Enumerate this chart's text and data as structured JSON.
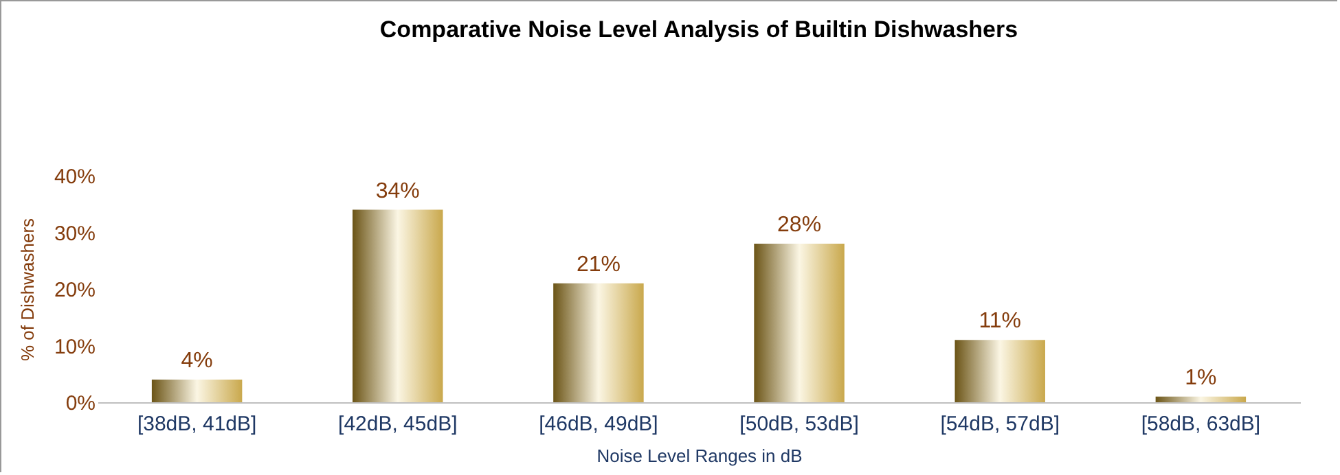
{
  "chart_data": {
    "type": "bar",
    "title": "Comparative  Noise Level Analysis of Builtin Dishwashers",
    "xlabel": "Noise Level Ranges in dB",
    "ylabel": "% of Dishwashers",
    "categories": [
      "[38dB, 41dB]",
      "[42dB, 45dB]",
      "[46dB, 49dB]",
      "[50dB, 53dB]",
      "[54dB, 57dB]",
      "[58dB, 63dB]"
    ],
    "values": [
      4,
      34,
      21,
      28,
      11,
      1
    ],
    "value_labels": [
      "4%",
      "34%",
      "21%",
      "28%",
      "11%",
      "1%"
    ],
    "color": "#c9a84c",
    "ylim": [
      0,
      40
    ],
    "yticks": [
      {
        "value": 0,
        "label": "0%"
      },
      {
        "value": 10,
        "label": "10%"
      },
      {
        "value": 20,
        "label": "20%"
      },
      {
        "value": 30,
        "label": "30%"
      },
      {
        "value": 40,
        "label": "40%"
      }
    ],
    "grid": false
  }
}
